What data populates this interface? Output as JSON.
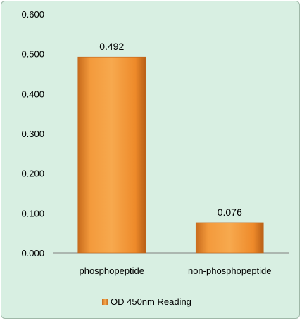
{
  "chart_data": {
    "type": "bar",
    "categories": [
      "phosphopeptide",
      "non-phosphopeptide"
    ],
    "series": [
      {
        "name": "OD 450nm Reading",
        "values": [
          0.492,
          0.076
        ]
      }
    ],
    "data_labels": [
      "0.492",
      "0.076"
    ],
    "yticks": [
      "0.000",
      "0.100",
      "0.200",
      "0.300",
      "0.400",
      "0.500",
      "0.600"
    ],
    "ylim": [
      0,
      0.6
    ],
    "title": "",
    "xlabel": "",
    "ylabel": "",
    "grid": false,
    "legend_position": "bottom",
    "colors": {
      "bar": "#f28c28",
      "bar_dark": "#c0641a",
      "background": "#d8efe2"
    }
  }
}
